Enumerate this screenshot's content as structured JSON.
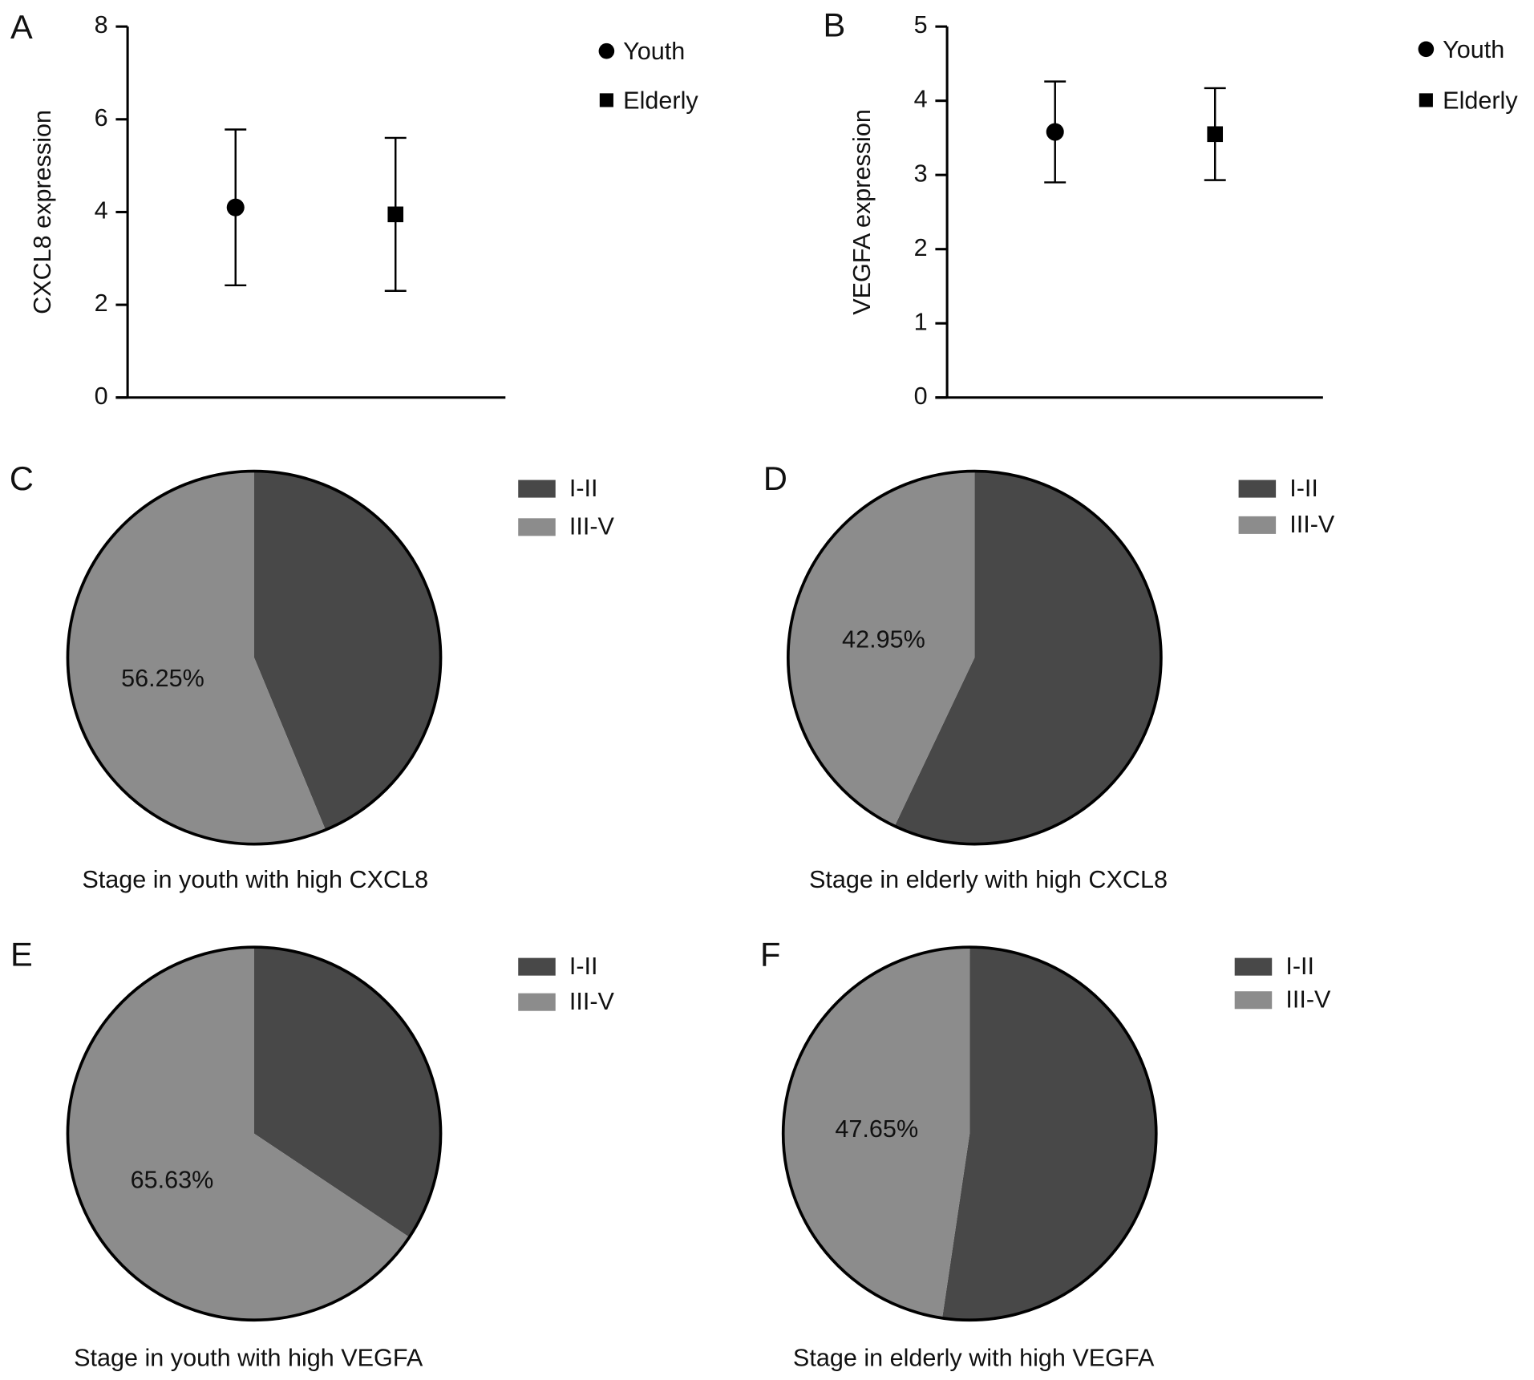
{
  "chart_data": [
    {
      "type": "errorbar",
      "panel": "A",
      "ylabel": "CXCL8 expression",
      "ylim": [
        0,
        8
      ],
      "yticks": [
        0,
        2,
        4,
        6,
        8
      ],
      "series": [
        {
          "name": "Youth",
          "marker": "circle",
          "color": "#000000",
          "values": [
            4.1
          ],
          "errors": [
            1.68
          ]
        },
        {
          "name": "Elderly",
          "marker": "square",
          "color": "#000000",
          "values": [
            3.95
          ],
          "errors": [
            1.65
          ]
        }
      ]
    },
    {
      "type": "errorbar",
      "panel": "B",
      "ylabel": "VEGFA expression",
      "ylim": [
        0,
        5
      ],
      "yticks": [
        0,
        1,
        2,
        3,
        4,
        5
      ],
      "series": [
        {
          "name": "Youth",
          "marker": "circle",
          "color": "#000000",
          "values": [
            3.58
          ],
          "errors": [
            0.68
          ]
        },
        {
          "name": "Elderly",
          "marker": "square",
          "color": "#000000",
          "values": [
            3.55
          ],
          "errors": [
            0.62
          ]
        }
      ]
    },
    {
      "type": "pie",
      "panel": "C",
      "title": "Stage in youth with high CXCL8",
      "categories": [
        "I-II",
        "III-V"
      ],
      "values": [
        43.75,
        56.25
      ],
      "value_labels": [
        null,
        "56.25%"
      ],
      "colors": [
        "#484848",
        "#8c8c8c"
      ]
    },
    {
      "type": "pie",
      "panel": "D",
      "title": "Stage in elderly with high CXCL8",
      "categories": [
        "I-II",
        "III-V"
      ],
      "values": [
        57.05,
        42.95
      ],
      "value_labels": [
        null,
        "42.95%"
      ],
      "colors": [
        "#484848",
        "#8c8c8c"
      ]
    },
    {
      "type": "pie",
      "panel": "E",
      "title": "Stage in youth with high VEGFA",
      "categories": [
        "I-II",
        "III-V"
      ],
      "values": [
        34.37,
        65.63
      ],
      "value_labels": [
        null,
        "65.63%"
      ],
      "colors": [
        "#484848",
        "#8c8c8c"
      ]
    },
    {
      "type": "pie",
      "panel": "F",
      "title": "Stage in elderly with high VEGFA",
      "categories": [
        "I-II",
        "III-V"
      ],
      "values": [
        52.35,
        47.65
      ],
      "value_labels": [
        null,
        "47.65%"
      ],
      "colors": [
        "#484848",
        "#8c8c8c"
      ]
    }
  ]
}
